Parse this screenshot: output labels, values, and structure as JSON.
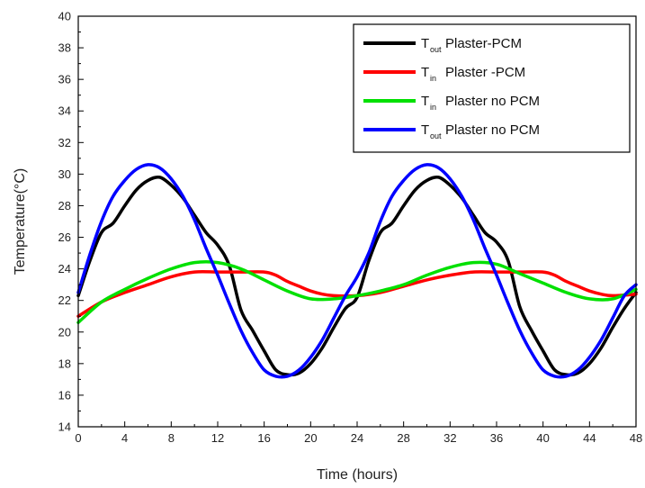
{
  "chart_data": {
    "type": "line",
    "title": "",
    "xlabel": "Time (hours)",
    "ylabel": "Temperature(°C)",
    "xlim": [
      0,
      48
    ],
    "ylim": [
      14,
      40
    ],
    "x_ticks": [
      0,
      4,
      8,
      12,
      16,
      20,
      24,
      28,
      32,
      36,
      40,
      44,
      48
    ],
    "y_ticks": [
      14,
      16,
      18,
      20,
      22,
      24,
      26,
      28,
      30,
      32,
      34,
      36,
      38,
      40
    ],
    "grid": false,
    "legend_position": "top-right",
    "legend": [
      {
        "main": "T",
        "sub": "out",
        "text": "Plaster-PCM",
        "color": "#000000"
      },
      {
        "main": "T",
        "sub": "in",
        "text": "Plaster -PCM",
        "color": "#ff0000"
      },
      {
        "main": "T",
        "sub": "in",
        "text": "Plaster no PCM",
        "color": "#00e000"
      },
      {
        "main": "T",
        "sub": "out",
        "text": "Plaster no PCM",
        "color": "#0000ff"
      }
    ],
    "series": [
      {
        "color": "#000000",
        "x": [
          0,
          1,
          2,
          3,
          4,
          5,
          6,
          7,
          8,
          9,
          10,
          11,
          12,
          13,
          14,
          15,
          16,
          17,
          18,
          19,
          20,
          21,
          22,
          23,
          24,
          25,
          26,
          27,
          28,
          29,
          30,
          31,
          32,
          33,
          34,
          35,
          36,
          37,
          38,
          39,
          40,
          41,
          42,
          43,
          44,
          45,
          46,
          47,
          48
        ],
        "y": [
          22.3,
          24.5,
          26.3,
          26.9,
          28.0,
          29.0,
          29.6,
          29.8,
          29.3,
          28.5,
          27.4,
          26.3,
          25.5,
          24.2,
          21.4,
          20.1,
          18.8,
          17.6,
          17.3,
          17.4,
          18.0,
          19.0,
          20.3,
          21.5,
          22.2,
          24.5,
          26.3,
          26.9,
          28.0,
          29.0,
          29.6,
          29.8,
          29.3,
          28.5,
          27.4,
          26.3,
          25.7,
          24.5,
          21.6,
          20.1,
          18.8,
          17.6,
          17.3,
          17.4,
          18.0,
          19.0,
          20.3,
          21.5,
          22.5
        ]
      },
      {
        "color": "#ff0000",
        "x": [
          0,
          2,
          4,
          6,
          8,
          10,
          12,
          14,
          16,
          17,
          18,
          19,
          20,
          21,
          22,
          24,
          26,
          28,
          30,
          32,
          34,
          36,
          38,
          40,
          41,
          42,
          43,
          44,
          45,
          46,
          48
        ],
        "y": [
          21.0,
          21.9,
          22.5,
          23.0,
          23.5,
          23.8,
          23.8,
          23.8,
          23.8,
          23.6,
          23.2,
          22.9,
          22.6,
          22.4,
          22.3,
          22.3,
          22.5,
          22.9,
          23.3,
          23.6,
          23.8,
          23.8,
          23.8,
          23.8,
          23.6,
          23.2,
          22.9,
          22.6,
          22.4,
          22.3,
          22.4
        ]
      },
      {
        "color": "#00e000",
        "x": [
          0,
          2,
          4,
          6,
          8,
          10,
          12,
          14,
          16,
          18,
          20,
          22,
          24,
          26,
          28,
          30,
          32,
          34,
          36,
          38,
          40,
          42,
          44,
          46,
          48
        ],
        "y": [
          20.6,
          21.9,
          22.7,
          23.4,
          24.0,
          24.4,
          24.4,
          24.0,
          23.3,
          22.6,
          22.1,
          22.1,
          22.3,
          22.6,
          23.0,
          23.6,
          24.1,
          24.4,
          24.3,
          23.7,
          23.1,
          22.5,
          22.1,
          22.1,
          22.7
        ]
      },
      {
        "color": "#0000ff",
        "x": [
          0,
          1,
          2,
          3,
          4,
          5,
          6,
          7,
          8,
          9,
          10,
          11,
          12,
          13,
          14,
          15,
          16,
          17,
          18,
          19,
          20,
          21,
          22,
          23,
          24,
          25,
          26,
          27,
          28,
          29,
          30,
          31,
          32,
          33,
          34,
          35,
          36,
          37,
          38,
          39,
          40,
          41,
          42,
          43,
          44,
          45,
          46,
          47,
          48
        ],
        "y": [
          22.5,
          24.9,
          27.0,
          28.6,
          29.6,
          30.3,
          30.6,
          30.4,
          29.7,
          28.6,
          27.1,
          25.3,
          23.6,
          21.8,
          20.1,
          18.7,
          17.6,
          17.2,
          17.2,
          17.6,
          18.4,
          19.5,
          20.9,
          22.3,
          23.5,
          25.0,
          27.0,
          28.6,
          29.6,
          30.3,
          30.6,
          30.4,
          29.7,
          28.6,
          27.1,
          25.3,
          23.6,
          21.8,
          20.1,
          18.7,
          17.6,
          17.2,
          17.2,
          17.6,
          18.4,
          19.5,
          20.9,
          22.3,
          23.0
        ]
      }
    ]
  }
}
